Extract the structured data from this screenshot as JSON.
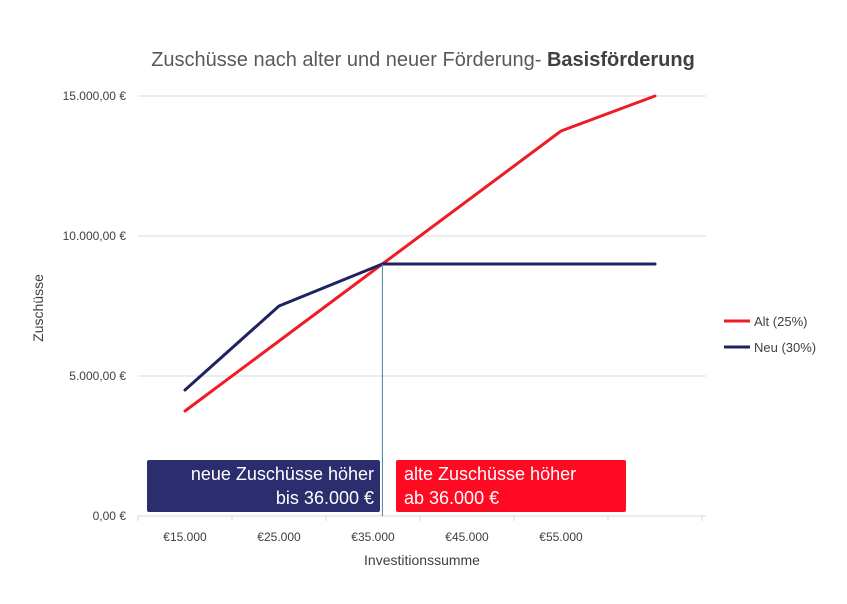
{
  "chart_data": {
    "type": "line",
    "title": "Zuschüsse nach alter und neuer Förderung- ",
    "title_bold": "Basisförderung",
    "xlabel": "Investitionssumme",
    "ylabel": "Zuschüsse",
    "x": [
      15000,
      25000,
      36000,
      55000,
      65000
    ],
    "x_tick_labels": [
      "€15.000",
      "€25.000",
      "€35.000",
      "€45.000",
      "€55.000"
    ],
    "ylim": [
      0,
      15000
    ],
    "y_tick_labels": [
      "0,00 €",
      "5.000,00 €",
      "10.000,00 €",
      "15.000,00 €"
    ],
    "grid": true,
    "legend_position": "right",
    "series": [
      {
        "name": "Alt (25%)",
        "color": "#ee1c25",
        "values": [
          3750,
          6250,
          9000,
          13750,
          15000
        ]
      },
      {
        "name": "Neu (30%)",
        "color": "#1f2360",
        "values": [
          4500,
          7500,
          9000,
          9000,
          9000
        ]
      }
    ],
    "divider_x": 36000,
    "annotations": [
      {
        "name": "neue-zuschuesse-box",
        "lines": [
          "neue Zuschüsse höher",
          "bis 36.000 €"
        ],
        "color": "#2b2d6e",
        "align": "right"
      },
      {
        "name": "alte-zuschuesse-box",
        "lines": [
          "alte Zuschüsse höher",
          "ab 36.000 €"
        ],
        "color": "#ff0a22",
        "align": "left"
      }
    ]
  }
}
